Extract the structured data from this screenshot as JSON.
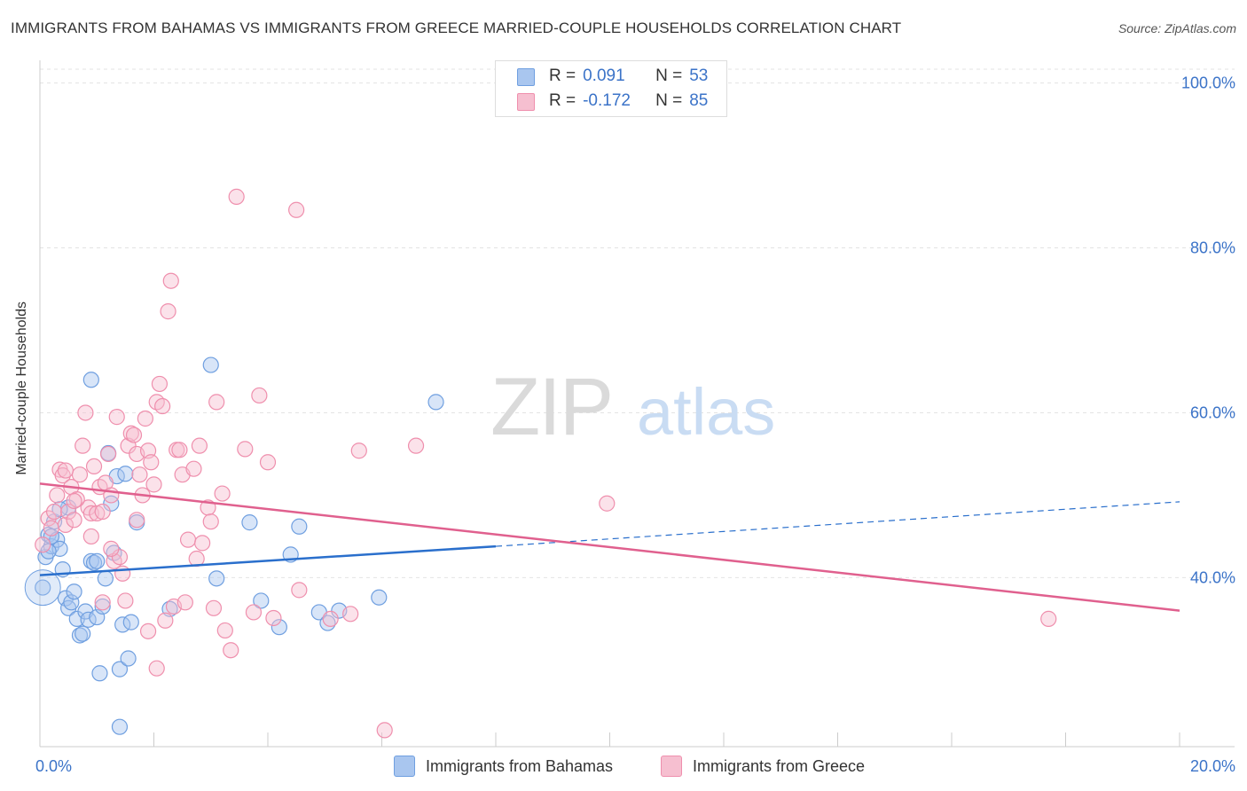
{
  "chart_data": {
    "type": "scatter",
    "title": "IMMIGRANTS FROM BAHAMAS VS IMMIGRANTS FROM GREECE MARRIED-COUPLE HOUSEHOLDS CORRELATION CHART",
    "source": "Source: ZipAtlas.com",
    "xlabel": "",
    "ylabel": "Married-couple Households",
    "xlim": [
      0,
      20
    ],
    "ylim": [
      19.5,
      102
    ],
    "x_tick_labels": [
      {
        "value": 0,
        "label": "0.0%"
      },
      {
        "value": 20,
        "label": "20.0%"
      }
    ],
    "y_tick_labels": [
      {
        "value": 100,
        "label": "100.0%"
      },
      {
        "value": 80,
        "label": "80.0%"
      },
      {
        "value": 60,
        "label": "60.0%"
      },
      {
        "value": 40,
        "label": "40.0%"
      }
    ],
    "watermark": {
      "part1": "ZIP",
      "part2": "atlas"
    },
    "stats": [
      {
        "r_label": "R =",
        "r": "0.091",
        "n_label": "N =",
        "n": "53"
      },
      {
        "r_label": "R =",
        "r": "-0.172",
        "n_label": "N =",
        "n": "85"
      }
    ],
    "series": [
      {
        "name": "Immigrants from Bahamas",
        "color": "#6f9fe0",
        "fill": "#a9c6ef",
        "line_color": "#2a6fcc",
        "trend": {
          "x0": 0,
          "y0": 40.3,
          "x_solid_end": 8,
          "y_solid_end": 43.8,
          "x1": 20,
          "y1": 49.2
        },
        "points": [
          [
            0.05,
            38.8
          ],
          [
            0.1,
            42.5
          ],
          [
            0.15,
            45.2
          ],
          [
            0.2,
            43.8
          ],
          [
            0.25,
            46.8
          ],
          [
            0.3,
            44.6
          ],
          [
            0.35,
            43.5
          ],
          [
            0.4,
            41.0
          ],
          [
            0.45,
            37.5
          ],
          [
            0.5,
            36.3
          ],
          [
            0.5,
            48.5
          ],
          [
            0.55,
            37.0
          ],
          [
            0.6,
            38.3
          ],
          [
            0.65,
            35.0
          ],
          [
            0.7,
            33.0
          ],
          [
            0.75,
            33.2
          ],
          [
            0.8,
            35.9
          ],
          [
            0.85,
            34.9
          ],
          [
            0.9,
            42.0
          ],
          [
            0.95,
            41.8
          ],
          [
            0.9,
            64.0
          ],
          [
            1.0,
            42.0
          ],
          [
            1.0,
            35.2
          ],
          [
            1.05,
            28.4
          ],
          [
            1.1,
            36.5
          ],
          [
            1.15,
            39.9
          ],
          [
            1.2,
            55.1
          ],
          [
            1.25,
            49.0
          ],
          [
            1.3,
            43.0
          ],
          [
            1.35,
            52.3
          ],
          [
            1.4,
            28.9
          ],
          [
            1.45,
            34.3
          ],
          [
            1.5,
            52.6
          ],
          [
            1.55,
            30.2
          ],
          [
            1.6,
            34.6
          ],
          [
            1.7,
            46.7
          ],
          [
            1.4,
            21.9
          ],
          [
            2.28,
            36.2
          ],
          [
            3.1,
            39.9
          ],
          [
            3.0,
            65.8
          ],
          [
            3.68,
            46.7
          ],
          [
            3.88,
            37.2
          ],
          [
            4.2,
            34.0
          ],
          [
            4.4,
            42.8
          ],
          [
            4.55,
            46.2
          ],
          [
            4.9,
            35.8
          ],
          [
            5.05,
            34.5
          ],
          [
            5.25,
            36.0
          ],
          [
            5.95,
            37.6
          ],
          [
            6.95,
            61.3
          ],
          [
            0.2,
            45.0
          ],
          [
            0.15,
            43.2
          ],
          [
            0.35,
            48.3
          ]
        ]
      },
      {
        "name": "Immigrants from Greece",
        "color": "#ef8fad",
        "fill": "#f6bfd0",
        "line_color": "#e0608e",
        "trend": {
          "x0": 0,
          "y0": 51.4,
          "x1": 20,
          "y1": 36.0
        },
        "points": [
          [
            0.05,
            44.0
          ],
          [
            0.15,
            47.2
          ],
          [
            0.2,
            46.0
          ],
          [
            0.25,
            48.0
          ],
          [
            0.3,
            50.0
          ],
          [
            0.35,
            53.1
          ],
          [
            0.4,
            52.4
          ],
          [
            0.45,
            46.4
          ],
          [
            0.5,
            48.0
          ],
          [
            0.55,
            51.0
          ],
          [
            0.6,
            47.0
          ],
          [
            0.7,
            52.5
          ],
          [
            0.75,
            56.0
          ],
          [
            0.8,
            60.0
          ],
          [
            0.85,
            48.5
          ],
          [
            0.9,
            47.8
          ],
          [
            0.95,
            53.5
          ],
          [
            1.0,
            47.8
          ],
          [
            1.05,
            51.0
          ],
          [
            1.1,
            48.0
          ],
          [
            1.15,
            51.5
          ],
          [
            1.2,
            55.0
          ],
          [
            1.25,
            50.0
          ],
          [
            1.3,
            42.0
          ],
          [
            1.35,
            59.5
          ],
          [
            1.4,
            42.5
          ],
          [
            1.45,
            40.5
          ],
          [
            1.5,
            37.2
          ],
          [
            1.55,
            56.0
          ],
          [
            1.6,
            57.5
          ],
          [
            1.65,
            57.3
          ],
          [
            1.7,
            55.0
          ],
          [
            1.75,
            52.5
          ],
          [
            1.8,
            50.0
          ],
          [
            1.85,
            59.3
          ],
          [
            1.9,
            55.4
          ],
          [
            1.95,
            54.0
          ],
          [
            2.0,
            51.3
          ],
          [
            2.05,
            61.3
          ],
          [
            2.1,
            63.5
          ],
          [
            2.15,
            60.8
          ],
          [
            2.2,
            34.8
          ],
          [
            2.25,
            72.3
          ],
          [
            2.3,
            76.0
          ],
          [
            2.35,
            36.5
          ],
          [
            2.4,
            55.5
          ],
          [
            2.45,
            55.5
          ],
          [
            2.5,
            52.5
          ],
          [
            2.55,
            37.0
          ],
          [
            2.6,
            44.6
          ],
          [
            2.7,
            53.2
          ],
          [
            2.8,
            56.0
          ],
          [
            2.85,
            44.2
          ],
          [
            2.95,
            48.5
          ],
          [
            3.0,
            46.8
          ],
          [
            3.05,
            36.3
          ],
          [
            3.1,
            61.3
          ],
          [
            3.2,
            50.2
          ],
          [
            3.25,
            33.6
          ],
          [
            3.35,
            31.2
          ],
          [
            3.45,
            86.2
          ],
          [
            3.6,
            55.6
          ],
          [
            3.75,
            35.8
          ],
          [
            3.85,
            62.1
          ],
          [
            4.0,
            54.0
          ],
          [
            4.1,
            35.1
          ],
          [
            4.5,
            84.6
          ],
          [
            4.55,
            38.5
          ],
          [
            5.1,
            35.0
          ],
          [
            5.45,
            35.6
          ],
          [
            5.6,
            55.4
          ],
          [
            6.05,
            21.5
          ],
          [
            6.6,
            56.0
          ],
          [
            9.95,
            49.0
          ],
          [
            17.7,
            35.0
          ],
          [
            2.05,
            29.0
          ],
          [
            1.1,
            37.0
          ],
          [
            0.9,
            45.0
          ],
          [
            0.65,
            49.5
          ],
          [
            0.45,
            53.0
          ],
          [
            1.9,
            33.5
          ],
          [
            2.75,
            42.3
          ],
          [
            1.25,
            43.5
          ],
          [
            0.6,
            49.3
          ],
          [
            1.7,
            47.0
          ]
        ]
      }
    ]
  }
}
